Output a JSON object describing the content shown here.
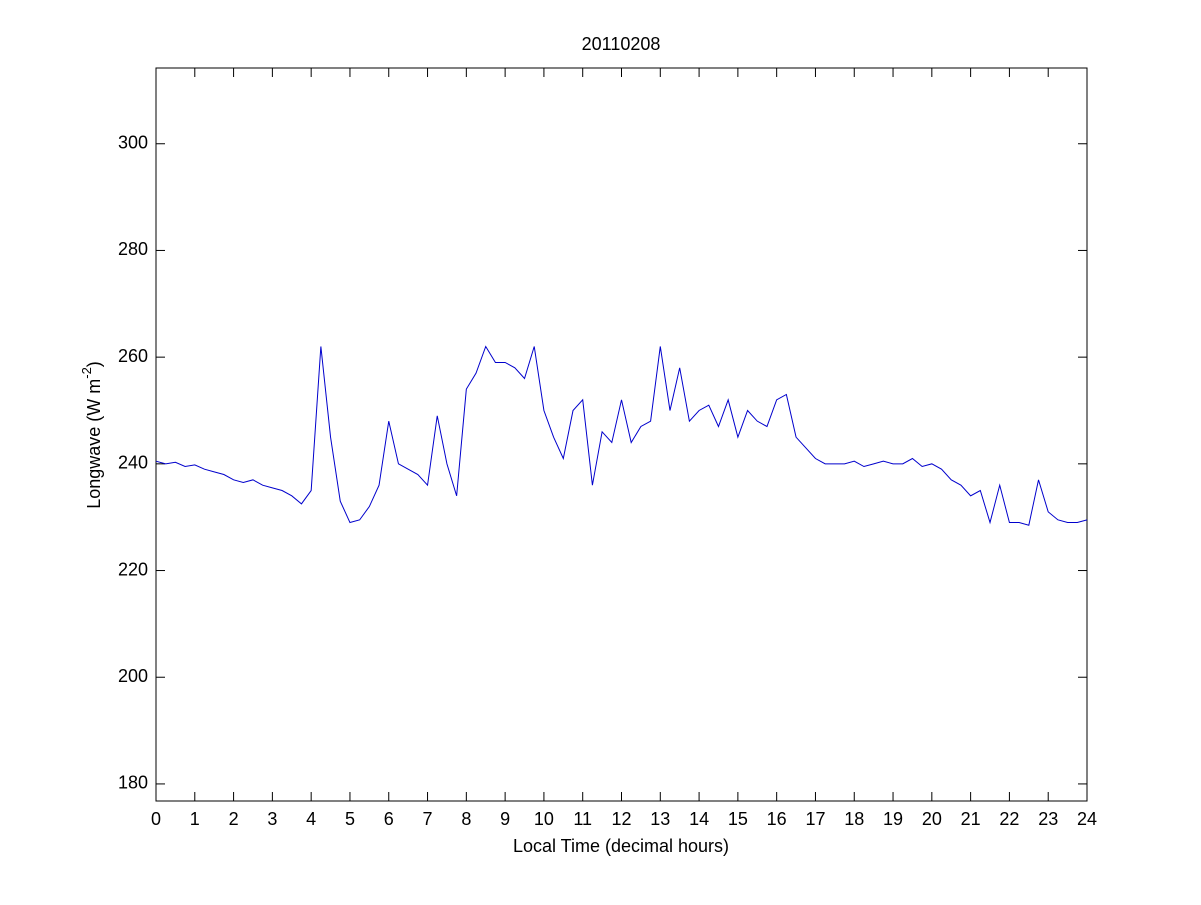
{
  "chart_data": {
    "type": "line",
    "title": "20110208",
    "xlabel": "Local Time (decimal hours)",
    "ylabel": {
      "text": "Longwave (W m",
      "superscript": "-2",
      "suffix": ")"
    },
    "xlim": [
      0,
      24
    ],
    "xticks": [
      0,
      1,
      2,
      3,
      4,
      5,
      6,
      7,
      8,
      9,
      10,
      11,
      12,
      13,
      14,
      15,
      16,
      17,
      18,
      19,
      20,
      21,
      22,
      23,
      24
    ],
    "ylim": [
      176.8,
      314.2
    ],
    "yticks": [
      180,
      200,
      220,
      240,
      260,
      280,
      300
    ],
    "grid": false,
    "series": [
      {
        "color": "#0000cc",
        "x": [
          0,
          0.25,
          0.5,
          0.75,
          1,
          1.25,
          1.5,
          1.75,
          2,
          2.25,
          2.5,
          2.75,
          3,
          3.25,
          3.5,
          3.75,
          4,
          4.25,
          4.5,
          4.75,
          5,
          5.25,
          5.5,
          5.75,
          6,
          6.25,
          6.5,
          6.75,
          7,
          7.25,
          7.5,
          7.75,
          8,
          8.25,
          8.5,
          8.75,
          9,
          9.25,
          9.5,
          9.75,
          10,
          10.25,
          10.5,
          10.75,
          11,
          11.25,
          11.5,
          11.75,
          12,
          12.25,
          12.5,
          12.75,
          13,
          13.25,
          13.5,
          13.75,
          14,
          14.25,
          14.5,
          14.75,
          15,
          15.25,
          15.5,
          15.75,
          16,
          16.25,
          16.5,
          16.75,
          17,
          17.25,
          17.5,
          17.75,
          18,
          18.25,
          18.5,
          18.75,
          19,
          19.25,
          19.5,
          19.75,
          20,
          20.25,
          20.5,
          20.75,
          21,
          21.25,
          21.5,
          21.75,
          22,
          22.25,
          22.5,
          22.75,
          23,
          23.25,
          23.5,
          23.75,
          24
        ],
        "values": [
          240.5,
          240,
          240.3,
          239.5,
          239.8,
          239,
          238.5,
          238,
          237,
          236.5,
          237,
          236,
          235.5,
          235,
          234,
          232.5,
          235,
          262,
          245,
          233,
          229,
          229.5,
          232,
          236,
          248,
          240,
          239,
          238,
          236,
          249,
          240,
          234,
          254,
          257,
          262,
          259,
          259,
          258,
          256,
          262,
          250,
          245,
          241,
          250,
          252,
          236,
          246,
          244,
          252,
          244,
          247,
          248,
          262,
          250,
          258,
          248,
          250,
          251,
          247,
          252,
          245,
          250,
          248,
          247,
          252,
          253,
          245,
          243,
          241,
          240,
          240,
          240,
          240.5,
          239.5,
          240,
          240.5,
          240,
          240,
          241,
          239.5,
          240,
          239,
          237,
          236,
          234,
          235,
          229,
          236,
          229,
          229,
          228.5,
          237,
          231,
          229.5,
          229,
          229,
          229.5
        ]
      }
    ]
  }
}
